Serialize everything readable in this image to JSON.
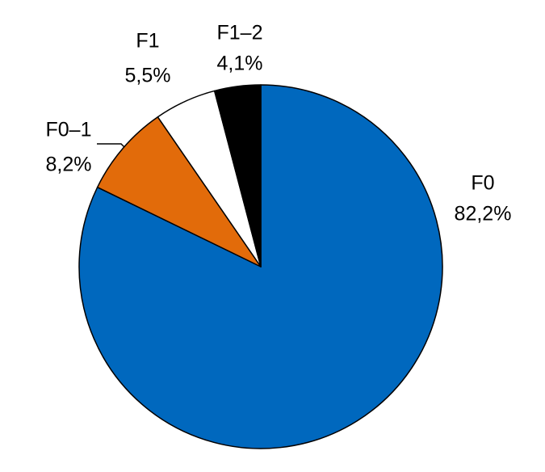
{
  "chart_data": {
    "type": "pie",
    "categories": [
      "F0",
      "F0–1",
      "F1",
      "F1–2"
    ],
    "values": [
      82.2,
      8.2,
      5.5,
      4.1
    ],
    "value_labels": [
      "82,2%",
      "8,2%",
      "5,5%",
      "4,1%"
    ],
    "colors": [
      "#0068be",
      "#e26b0a",
      "#ffffff",
      "#000000"
    ]
  }
}
